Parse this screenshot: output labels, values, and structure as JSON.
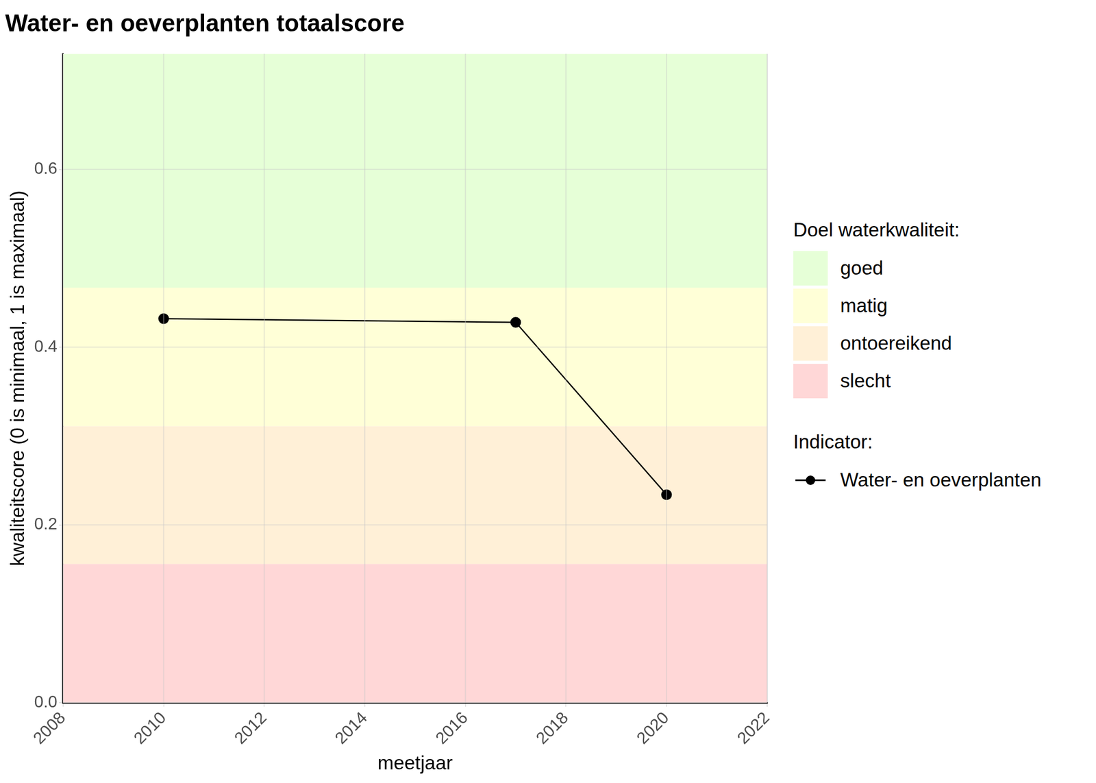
{
  "chart_data": {
    "type": "line",
    "title": "Water- en oeverplanten totaalscore",
    "x_label": "meetjaar",
    "y_label": "kwaliteitscore (0 is minimaal, 1 is maximaal)",
    "x": [
      2010,
      2017,
      2020
    ],
    "series": [
      {
        "name": "Water- en oeverplanten",
        "color": "#000000",
        "marker": "circle",
        "line_style": "solid",
        "values": [
          0.432,
          0.428,
          0.234
        ]
      }
    ],
    "xlim": [
      2008,
      2022
    ],
    "xticks": [
      2008,
      2010,
      2012,
      2014,
      2016,
      2018,
      2020,
      2022
    ],
    "ylim": [
      0,
      0.73
    ],
    "yticks": [
      {
        "value": 0,
        "label": "0.0"
      },
      0.2,
      0.4,
      0.6
    ],
    "grid": true,
    "legend": "right",
    "bands": {
      "title": "Doel waterkwaliteit:",
      "items": [
        {
          "name": "goed",
          "color": "#e6ffd7",
          "from": 0.467,
          "to": 0.73
        },
        {
          "name": "matig",
          "color": "#ffffd7",
          "from": 0.311,
          "to": 0.467
        },
        {
          "name": "ontoereikend",
          "color": "#fff0d7",
          "from": 0.156,
          "to": 0.311
        },
        {
          "name": "slecht",
          "color": "#ffd7d7",
          "from": 0,
          "to": 0.156
        }
      ]
    },
    "series_legend_title": "Indicator:"
  }
}
